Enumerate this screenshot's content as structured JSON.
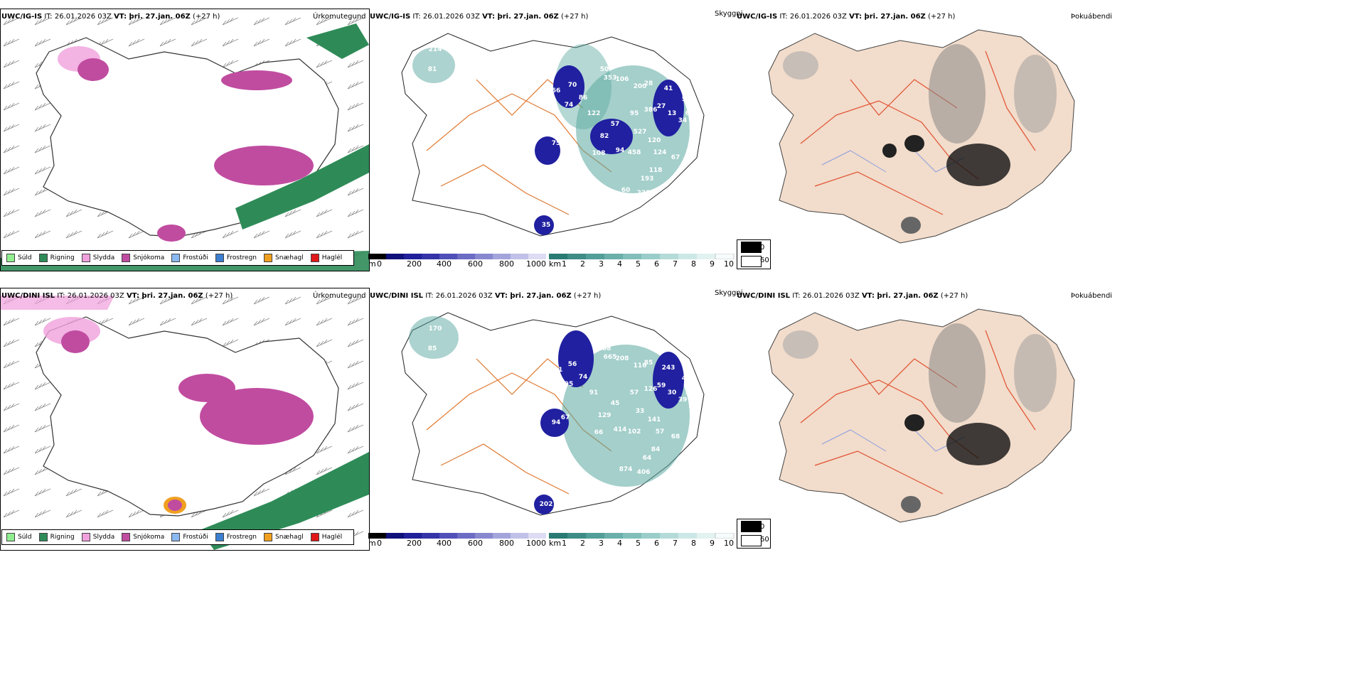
{
  "rows": [
    {
      "model": "UWC/IG-IS",
      "it_label": "IT: 26.01.2026 03Z",
      "vt_label": "VT: þri. 27.jan. 06Z",
      "lead": "(+27 h)",
      "precip_title": "Úrkomutegund",
      "cloud_title": "Skyggni",
      "fog_title": "Þokuábendi",
      "cloud_labels": [
        "214",
        "105",
        "81",
        "66",
        "70",
        "86",
        "74",
        "122",
        "57",
        "95",
        "82",
        "75",
        "93",
        "108",
        "94",
        "458",
        "120",
        "124",
        "67",
        "118",
        "193",
        "60",
        "238",
        "88",
        "129",
        "50",
        "353",
        "106",
        "28",
        "200",
        "41",
        "54",
        "68",
        "59",
        "35",
        "527",
        "386",
        "27",
        "13",
        "34"
      ]
    },
    {
      "model": "UWC/DINI ISL",
      "it_label": "IT: 26.01.2026 03Z",
      "vt_label": "VT: þri. 27.jan. 06Z",
      "lead": "(+27 h)",
      "precip_title": "Úrkomutegund",
      "cloud_title": "Skyggni",
      "fog_title": "Þokuábendi",
      "cloud_labels": [
        "170",
        "52",
        "85",
        "101",
        "56",
        "74",
        "95",
        "91",
        "45",
        "57",
        "129",
        "94",
        "67",
        "66",
        "414",
        "102",
        "141",
        "57",
        "68",
        "84",
        "64",
        "874",
        "406",
        "156",
        "56",
        "108",
        "665",
        "208",
        "85",
        "116",
        "243",
        "40",
        "54",
        "46",
        "202",
        "33",
        "126",
        "59",
        "30",
        "39"
      ]
    }
  ],
  "precip_legend": [
    {
      "label": "Súld",
      "color": "#90ee90"
    },
    {
      "label": "Rigning",
      "color": "#2e8b57"
    },
    {
      "label": "Slydda",
      "color": "#f0a0dc"
    },
    {
      "label": "Snjókoma",
      "color": "#c04ca0"
    },
    {
      "label": "Frostúði",
      "color": "#8ab8f0"
    },
    {
      "label": "Frostregn",
      "color": "#3c7fd0"
    },
    {
      "label": "Snæhagl",
      "color": "#f0a020"
    },
    {
      "label": "Haglél",
      "color": "#e01818"
    }
  ],
  "height_bar": {
    "unit": "m",
    "ticks": [
      "0",
      "200",
      "400",
      "600",
      "800",
      "1000"
    ]
  },
  "km_bar": {
    "unit": "km",
    "ticks": [
      "1",
      "2",
      "3",
      "4",
      "5",
      "6",
      "7",
      "8",
      "9",
      "10"
    ]
  },
  "vis_legend": {
    "black_value": "0",
    "white_value": "60"
  }
}
